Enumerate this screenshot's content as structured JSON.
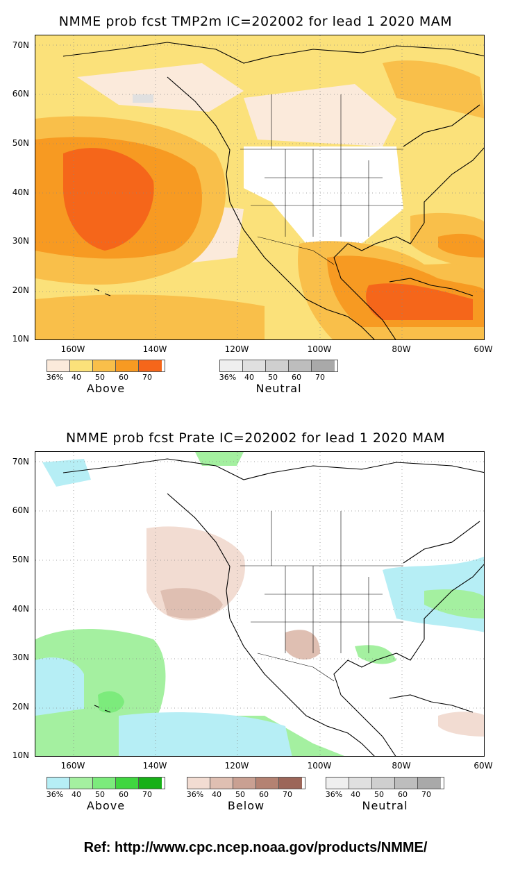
{
  "panels": [
    {
      "title": "NMME prob fcst TMP2m IC=202002 for lead 1 2020 MAM",
      "lat_labels": [
        "70N",
        "60N",
        "50N",
        "40N",
        "30N",
        "20N",
        "10N"
      ],
      "lon_labels": [
        "160W",
        "140W",
        "120W",
        "100W",
        "80W",
        "60W"
      ],
      "legends": [
        {
          "category": "Above",
          "ticks": [
            "36%",
            "40",
            "50",
            "60",
            "70"
          ],
          "colors": [
            "#fbeadb",
            "#fbe17a",
            "#f9bf4a",
            "#f79a22",
            "#f5661a"
          ]
        },
        {
          "category": "Neutral",
          "ticks": [
            "36%",
            "40",
            "50",
            "60",
            "70"
          ],
          "colors": [
            "#efefef",
            "#e0e0e0",
            "#cfcfcf",
            "#bdbdbd",
            "#a9a9a9"
          ]
        }
      ]
    },
    {
      "title": "NMME prob fcst Prate IC=202002 for lead 1 2020 MAM",
      "lat_labels": [
        "70N",
        "60N",
        "50N",
        "40N",
        "30N",
        "20N",
        "10N"
      ],
      "lon_labels": [
        "160W",
        "140W",
        "120W",
        "100W",
        "80W",
        "60W"
      ],
      "legends": [
        {
          "category": "Above",
          "ticks": [
            "36%",
            "40",
            "50",
            "60",
            "70"
          ],
          "colors": [
            "#b6eef5",
            "#a4f0a0",
            "#7ceb7c",
            "#40d640",
            "#17b017"
          ]
        },
        {
          "category": "Below",
          "ticks": [
            "36%",
            "40",
            "50",
            "60",
            "70"
          ],
          "colors": [
            "#f2dcd2",
            "#dfbfb2",
            "#c9a092",
            "#b48272",
            "#9c6659"
          ]
        },
        {
          "category": "Neutral",
          "ticks": [
            "36%",
            "40",
            "50",
            "60",
            "70"
          ],
          "colors": [
            "#efefef",
            "#e0e0e0",
            "#cfcfcf",
            "#bdbdbd",
            "#a9a9a9"
          ]
        }
      ]
    }
  ],
  "reference": "Ref: http://www.cpc.ncep.noaa.gov/products/NMME/"
}
